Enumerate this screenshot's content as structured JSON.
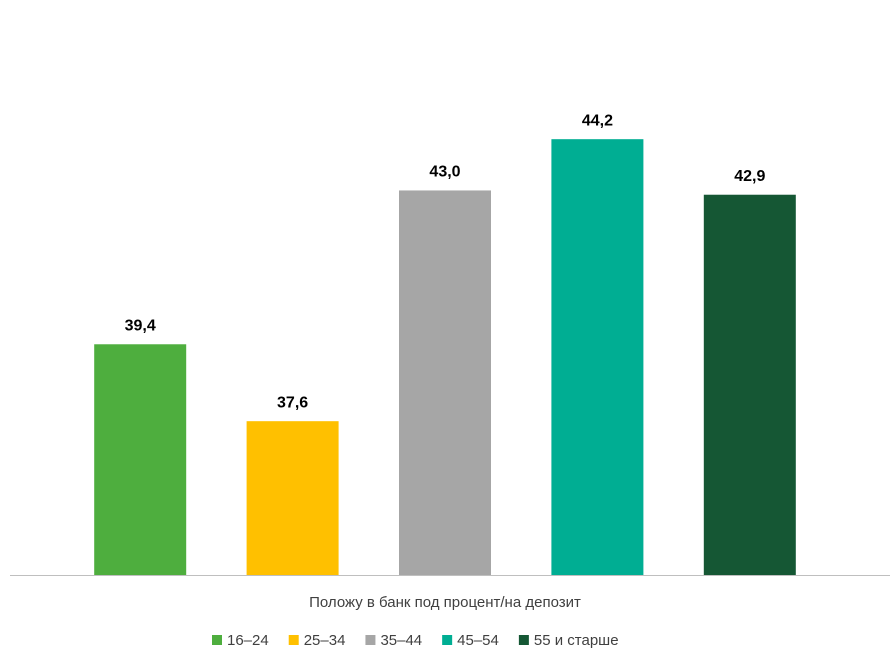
{
  "chart_data": {
    "type": "bar",
    "categories": [
      "Положу в банк под процент/на депозит"
    ],
    "series": [
      {
        "name": "16–24",
        "color": "#4eae3e",
        "values": [
          39.4
        ],
        "value_labels": [
          "39,4"
        ]
      },
      {
        "name": "25–34",
        "color": "#ffc000",
        "values": [
          37.6
        ],
        "value_labels": [
          "37,6"
        ]
      },
      {
        "name": "35–44",
        "color": "#a6a6a6",
        "values": [
          43.0
        ],
        "value_labels": [
          "43,0"
        ]
      },
      {
        "name": "45–54",
        "color": "#00ae93",
        "values": [
          44.2
        ],
        "value_labels": [
          "44,2"
        ]
      },
      {
        "name": "55 и старше",
        "color": "#155734",
        "values": [
          42.9
        ],
        "value_labels": [
          "42,9"
        ]
      }
    ],
    "ylim": [
      34,
      45
    ],
    "legend": "bottom"
  }
}
